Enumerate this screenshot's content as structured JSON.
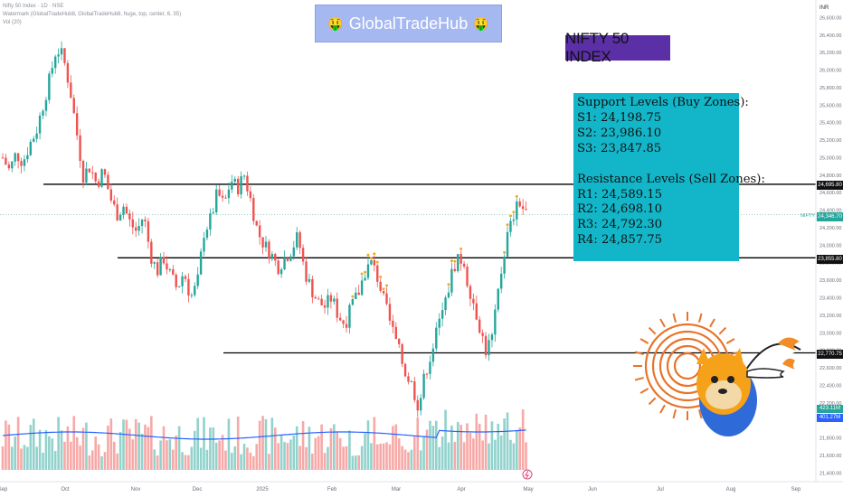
{
  "legend": {
    "line1": "Nifty 50 Index · 1D · NSE",
    "line2": "Watermark (GlobalTradeHub8, GlobalTradeHub8, huge, top, center, 6, 35)",
    "line3": "Vol (20)"
  },
  "banner": {
    "left_emoji": "🤑",
    "text": "GlobalTradeHub",
    "right_emoji": "🤑"
  },
  "title_box": "NIFTY 50 INDEX",
  "levels": {
    "support_header": "Support Levels (Buy Zones):",
    "support": [
      "S1: 24,198.75",
      "S2: 23,986.10",
      "S3: 23,847.85"
    ],
    "resistance_header": "Resistance Levels (Sell Zones):",
    "resistance": [
      "R1: 24,589.15",
      "R2: 24,698.10",
      "R3: 24,792.30",
      "R4: 24,857.75"
    ]
  },
  "price_axis": {
    "currency": "INR",
    "ticks": [
      "26,600.00",
      "26,400.00",
      "26,200.00",
      "26,000.00",
      "25,800.00",
      "25,600.00",
      "25,400.00",
      "25,200.00",
      "25,000.00",
      "24,800.00",
      "24,600.00",
      "24,400.00",
      "24,200.00",
      "24,000.00",
      "23,800.00",
      "23,600.00",
      "23,400.00",
      "23,200.00",
      "23,000.00",
      "22,800.00",
      "22,600.00",
      "22,400.00",
      "22,200.00",
      "22,000.00",
      "21,800.00",
      "21,600.00",
      "21,400.00"
    ]
  },
  "price_labels": {
    "last_price": "24,346.70",
    "symbol": "NIFTY",
    "level_top": "24,695.80",
    "level_mid": "23,855.80",
    "level_low": "22,770.75",
    "vol_a": "423.11M",
    "vol_b": "401.27M"
  },
  "time_axis": [
    "Sep",
    "Oct",
    "Nov",
    "Dec",
    "2025",
    "Feb",
    "Mar",
    "Apr",
    "May",
    "Jun",
    "Jul",
    "Aug",
    "Sep"
  ],
  "colors": {
    "up": "#26a69a",
    "down": "#ef5350",
    "volume_ma": "#2962ff",
    "pivot_dot": "#f5a623",
    "level_line": "#000000"
  },
  "chart_data": {
    "type": "candlestick",
    "title": "Nifty 50 Index",
    "ylim": [
      21300,
      26800
    ],
    "horizontal_levels": [
      24695.8,
      23855.8,
      22770.75
    ],
    "last_price": 24346.7,
    "volume_ma_last": [
      423.11,
      401.27
    ],
    "close_path": [
      25000,
      24850,
      25050,
      24950,
      25150,
      25300,
      25600,
      25900,
      26250,
      26150,
      25800,
      25300,
      24800,
      24900,
      24700,
      24850,
      24550,
      24350,
      24450,
      24250,
      24150,
      24350,
      23900,
      23700,
      23850,
      23650,
      23500,
      23700,
      23400,
      23550,
      24150,
      24300,
      24600,
      24450,
      24750,
      24650,
      24800,
      24500,
      24150,
      24000,
      23900,
      23750,
      23850,
      23950,
      24100,
      23700,
      23500,
      23350,
      23300,
      23400,
      23200,
      23100,
      23300,
      23450,
      23700,
      23800,
      23600,
      23300,
      23050,
      22800,
      22550,
      22400,
      22150,
      22550,
      22800,
      23100,
      23350,
      23700,
      23900,
      23650,
      23400,
      23100,
      22800,
      22950,
      23550,
      24050,
      24300,
      24500,
      24350
    ],
    "x_ticks": [
      "Sep",
      "Oct",
      "Nov",
      "Dec",
      "2025",
      "Feb",
      "Mar",
      "Apr",
      "May",
      "Jun",
      "Jul",
      "Aug",
      "Sep"
    ]
  }
}
